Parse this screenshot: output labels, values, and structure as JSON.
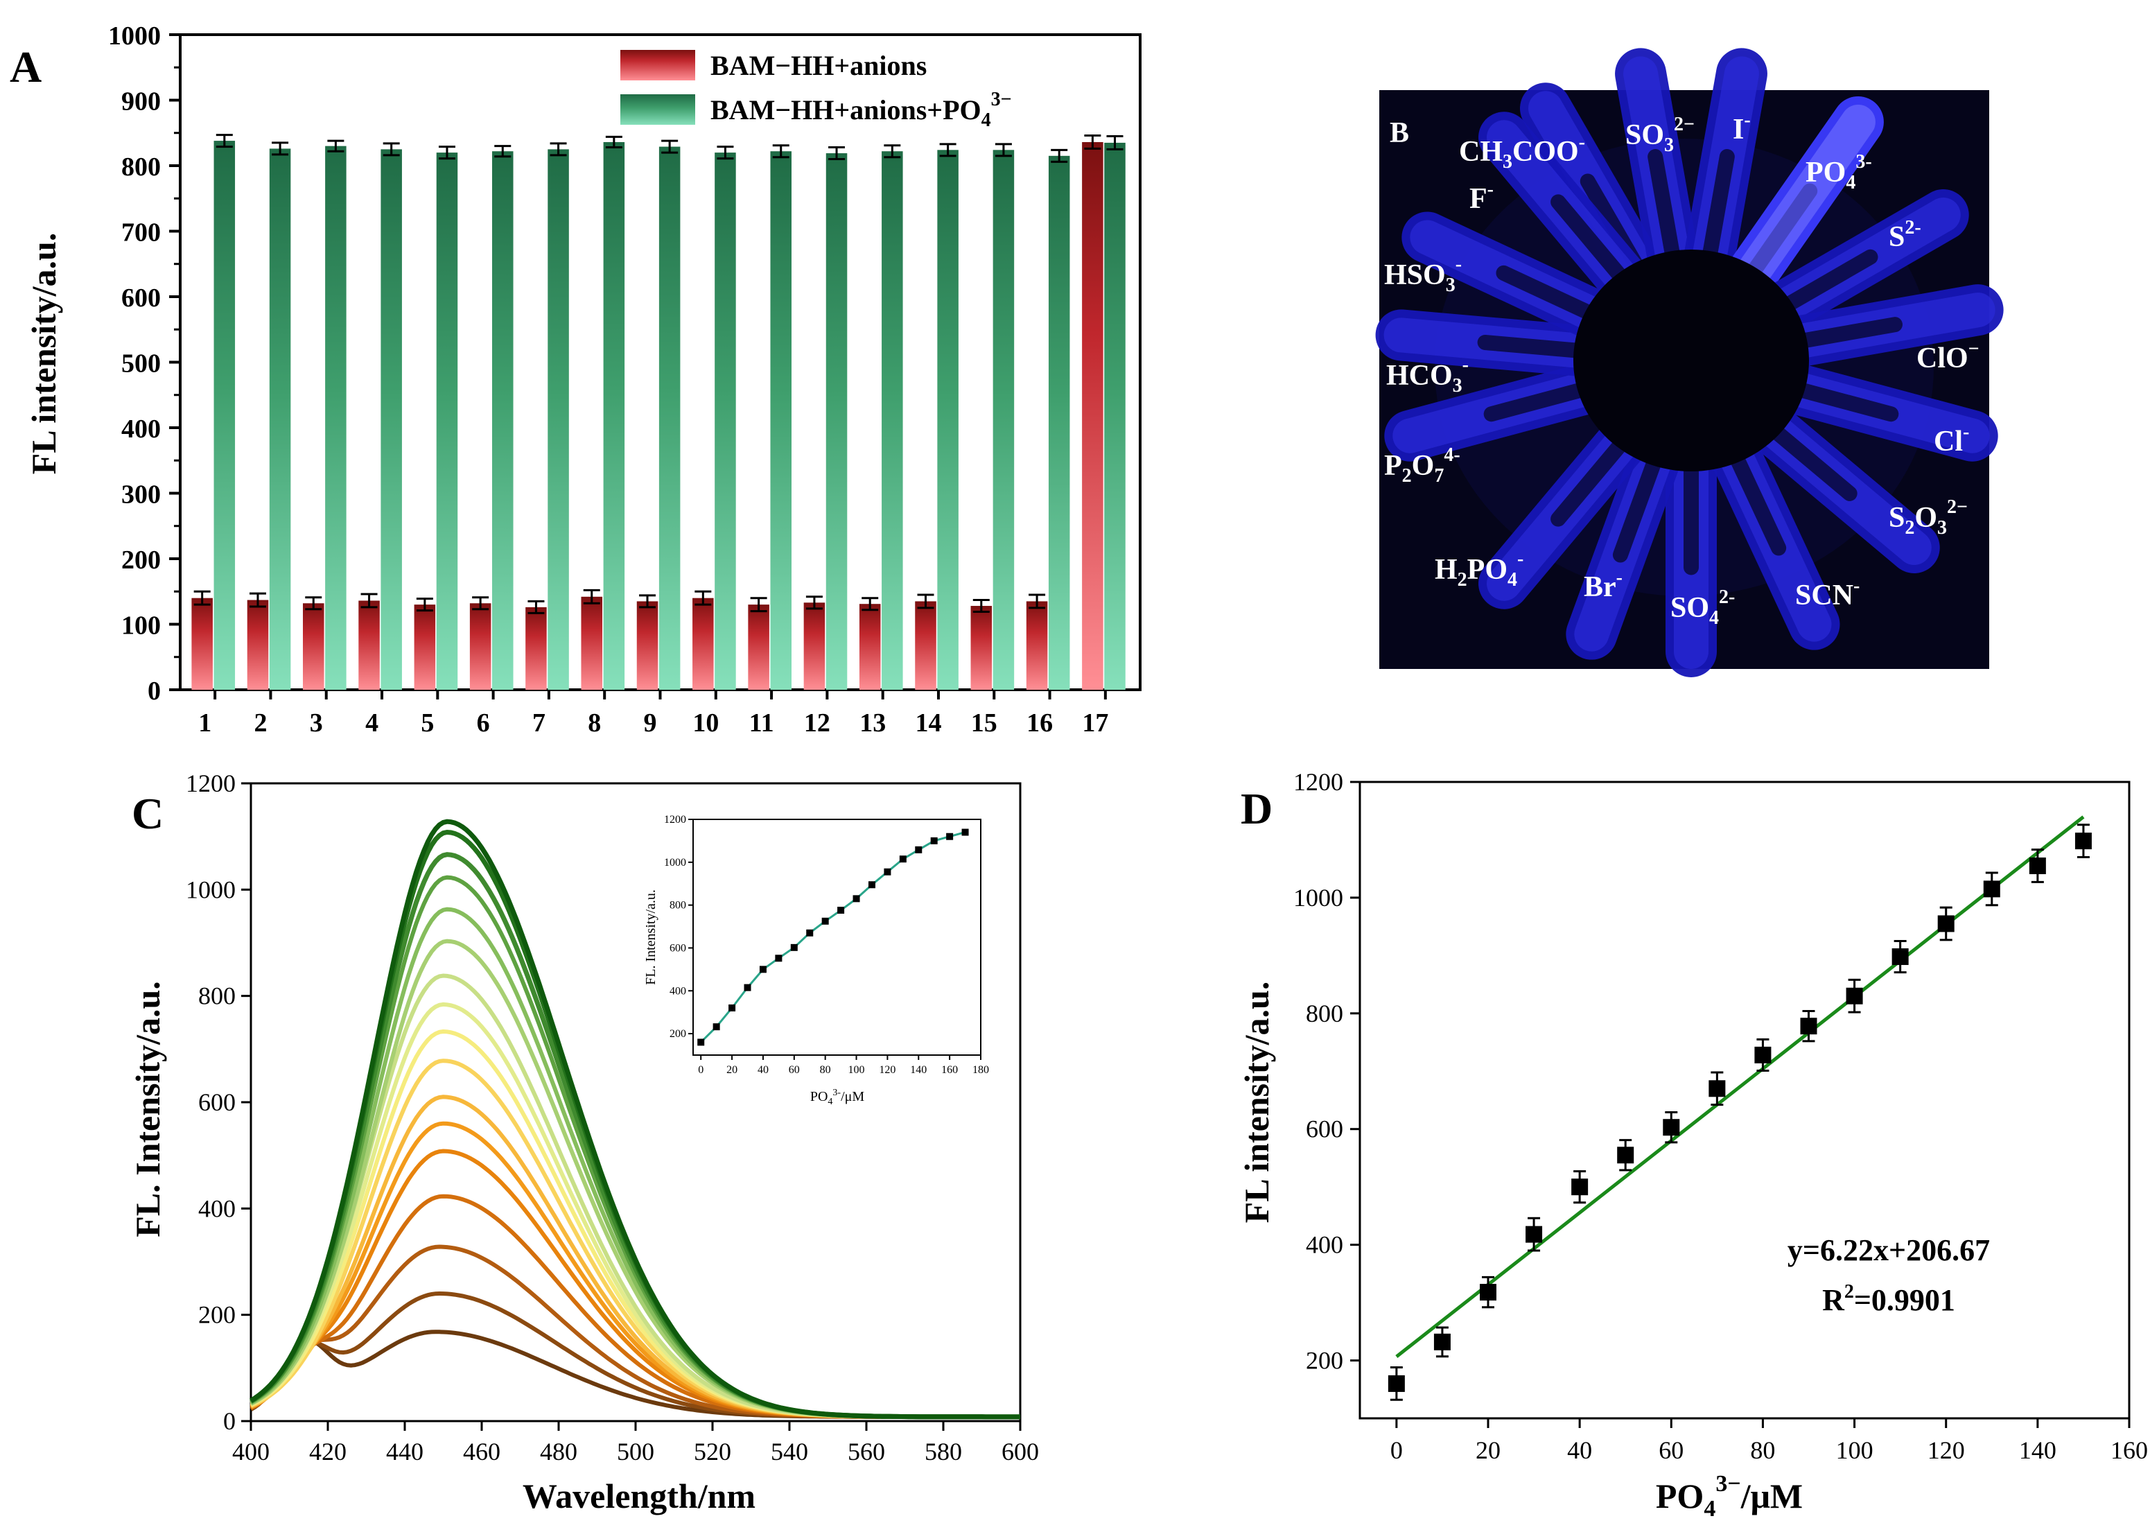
{
  "panelA": {
    "label": "A",
    "ylabel": "FL intensity/a.u.",
    "ylim": [
      0,
      1000
    ],
    "yticks": [
      "0",
      "100",
      "200",
      "300",
      "400",
      "500",
      "600",
      "700",
      "800",
      "900",
      "1000"
    ],
    "legend": {
      "series1": "BAM−HH+anions",
      "series2_prefix": "BAM−HH+anions+PO",
      "series2_sub": "4",
      "series2_sup": "3−"
    }
  },
  "panelB": {
    "label": "B",
    "tubes": [
      {
        "name": "CH3COO-",
        "main": "CH",
        "sub": "3",
        "main2": "COO",
        "sup": "-"
      },
      {
        "name": "SO32-",
        "main": "SO",
        "sub": "3",
        "sup": "2−"
      },
      {
        "name": "I-",
        "main": "I",
        "sup": "-"
      },
      {
        "name": "PO43-",
        "main": "PO",
        "sub": "4",
        "sup": "3-"
      },
      {
        "name": "S2-",
        "main": "S",
        "sup": "2-"
      },
      {
        "name": "ClO-",
        "main": "ClO",
        "sup": "−"
      },
      {
        "name": "Cl-",
        "main": "Cl",
        "sup": "-"
      },
      {
        "name": "S2O32-",
        "main": "S",
        "sub": "2",
        "main2": "O",
        "sub2": "3",
        "sup": "2−"
      },
      {
        "name": "SCN-",
        "main": "SCN",
        "sup": "-"
      },
      {
        "name": "SO42-",
        "main": "SO",
        "sub": "4",
        "sup": "2-"
      },
      {
        "name": "Br-",
        "main": "Br",
        "sup": "-"
      },
      {
        "name": "H2PO4-",
        "main": "H",
        "sub": "2",
        "main2": "PO",
        "sub2": "4",
        "sup": "-"
      },
      {
        "name": "P2O74-",
        "main": "P",
        "sub": "2",
        "main2": "O",
        "sub2": "7",
        "sup": "4-"
      },
      {
        "name": "HCO3-",
        "main": "HCO",
        "sub": "3",
        "sup": "-"
      },
      {
        "name": "HSO3-",
        "main": "HSO",
        "sub": "3",
        "sup": "-"
      },
      {
        "name": "F-",
        "main": "F",
        "sup": "-"
      }
    ]
  },
  "panelC": {
    "label": "C",
    "xlabel": "Wavelength/nm",
    "ylabel": "FL. Intensity/a.u.",
    "xticks": [
      "400",
      "420",
      "440",
      "460",
      "480",
      "500",
      "520",
      "540",
      "560",
      "580",
      "600"
    ],
    "yticks": [
      "0",
      "200",
      "400",
      "600",
      "800",
      "1000",
      "1200"
    ],
    "inset": {
      "ylabel": "FL. Intensity/a.u.",
      "xlabel_prefix": "PO",
      "xlabel_sub": "4",
      "xlabel_sup": "3-",
      "xlabel_suffix": "/μM",
      "xticks": [
        "0",
        "20",
        "40",
        "60",
        "80",
        "100",
        "120",
        "140",
        "160",
        "180"
      ],
      "yticks": [
        "200",
        "400",
        "600",
        "800",
        "1000",
        "1200"
      ]
    }
  },
  "panelD": {
    "label": "D",
    "ylabel": "FL intensity/a.u.",
    "xlabel_prefix": "PO",
    "xlabel_sub": "4",
    "xlabel_sup": "3−",
    "xlabel_suffix": "/μM",
    "xticks": [
      "0",
      "20",
      "40",
      "60",
      "80",
      "100",
      "120",
      "140",
      "160"
    ],
    "yticks": [
      "200",
      "400",
      "600",
      "800",
      "1000",
      "1200"
    ],
    "equation": "y=6.22x+206.67",
    "r2_prefix": "R",
    "r2_sup": "2",
    "r2_suffix": "=0.9901"
  },
  "chart_data": [
    {
      "panel": "A",
      "type": "bar",
      "title": "",
      "xlabel": "",
      "ylabel": "FL intensity/a.u.",
      "ylim": [
        0,
        1000
      ],
      "categories": [
        "1",
        "2",
        "3",
        "4",
        "5",
        "6",
        "7",
        "8",
        "9",
        "10",
        "11",
        "12",
        "13",
        "14",
        "15",
        "16",
        "17"
      ],
      "series": [
        {
          "name": "BAM−HH+anions",
          "color": "#c0272d",
          "values": [
            140,
            137,
            132,
            136,
            130,
            132,
            126,
            142,
            135,
            140,
            130,
            133,
            131,
            135,
            128,
            135,
            836
          ],
          "errors": [
            10,
            10,
            9,
            10,
            9,
            9,
            9,
            10,
            9,
            10,
            10,
            9,
            9,
            10,
            9,
            10,
            10
          ]
        },
        {
          "name": "BAM−HH+anions+PO4 3−",
          "color": "#2e8b5a",
          "values": [
            838,
            826,
            830,
            825,
            820,
            822,
            825,
            836,
            829,
            820,
            822,
            819,
            822,
            824,
            824,
            815,
            835
          ],
          "errors": [
            9,
            9,
            8,
            9,
            9,
            8,
            9,
            8,
            9,
            9,
            9,
            9,
            9,
            9,
            9,
            9,
            10
          ]
        }
      ],
      "legend": "top-right"
    },
    {
      "panel": "C",
      "type": "line",
      "xlabel": "Wavelength/nm",
      "ylabel": "FL. Intensity/a.u.",
      "xlim": [
        400,
        600
      ],
      "ylim": [
        0,
        1200
      ],
      "series_peaks": [
        {
          "peak_nm": 448,
          "peak": 160,
          "color": "#6b3a0e"
        },
        {
          "peak_nm": 449,
          "peak": 232,
          "color": "#8b4a10"
        },
        {
          "peak_nm": 449,
          "peak": 320,
          "color": "#b35c10"
        },
        {
          "peak_nm": 450,
          "peak": 415,
          "color": "#d46f0c"
        },
        {
          "peak_nm": 450,
          "peak": 500,
          "color": "#e8830c"
        },
        {
          "peak_nm": 450,
          "peak": 552,
          "color": "#f39a1a"
        },
        {
          "peak_nm": 450,
          "peak": 602,
          "color": "#f7b73a"
        },
        {
          "peak_nm": 450,
          "peak": 670,
          "color": "#f9d35c"
        },
        {
          "peak_nm": 450,
          "peak": 725,
          "color": "#f6ec7e"
        },
        {
          "peak_nm": 450,
          "peak": 776,
          "color": "#e2eb8c"
        },
        {
          "peak_nm": 450,
          "peak": 830,
          "color": "#c8df86"
        },
        {
          "peak_nm": 451,
          "peak": 895,
          "color": "#a7cf72"
        },
        {
          "peak_nm": 451,
          "peak": 955,
          "color": "#86bd5c"
        },
        {
          "peak_nm": 451,
          "peak": 1015,
          "color": "#5ea241"
        },
        {
          "peak_nm": 451,
          "peak": 1058,
          "color": "#3f8a2e"
        },
        {
          "peak_nm": 451,
          "peak": 1100,
          "color": "#23721b"
        },
        {
          "peak_nm": 451,
          "peak": 1120,
          "color": "#0f5a0d"
        }
      ],
      "inset": {
        "type": "line",
        "xlabel": "PO4 3-/μM",
        "ylabel": "FL. Intensity/a.u.",
        "xlim": [
          -5,
          180
        ],
        "ylim": [
          100,
          1200
        ],
        "x": [
          0,
          10,
          20,
          30,
          40,
          50,
          60,
          70,
          80,
          90,
          100,
          110,
          120,
          130,
          140,
          150,
          160,
          170
        ],
        "y": [
          160,
          232,
          320,
          415,
          500,
          552,
          602,
          670,
          725,
          776,
          830,
          895,
          955,
          1015,
          1058,
          1100,
          1120,
          1140
        ]
      }
    },
    {
      "panel": "D",
      "type": "scatter",
      "xlabel": "PO4 3−/μM",
      "ylabel": "FL intensity/a.u.",
      "xlim": [
        -8,
        160
      ],
      "ylim": [
        100,
        1200
      ],
      "x": [
        0,
        10,
        20,
        30,
        40,
        50,
        60,
        70,
        80,
        90,
        100,
        110,
        120,
        130,
        140,
        150
      ],
      "y": [
        160,
        232,
        318,
        418,
        500,
        555,
        603,
        670,
        728,
        778,
        830,
        898,
        955,
        1015,
        1055,
        1098
      ],
      "errors": [
        28,
        25,
        26,
        28,
        27,
        26,
        26,
        28,
        27,
        26,
        28,
        27,
        28,
        28,
        28,
        28
      ],
      "fit": {
        "slope": 6.22,
        "intercept": 206.67,
        "x_range": [
          0,
          150
        ],
        "color": "#1a8a1a"
      }
    }
  ]
}
